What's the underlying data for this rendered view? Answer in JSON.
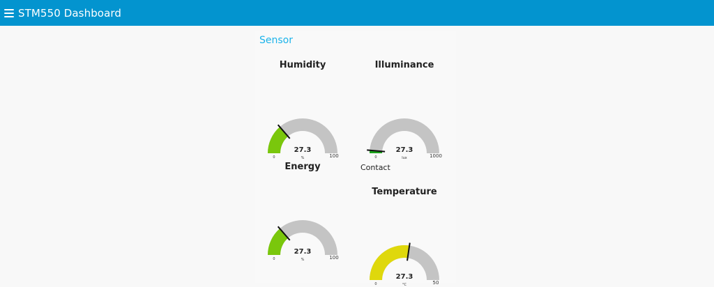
{
  "header": {
    "title": "STM550 Dashboard",
    "menu_icon": "hamburger-menu-icon"
  },
  "group": {
    "title": "Sensor"
  },
  "gauges": [
    {
      "key": "humidity",
      "label": "Humidity",
      "value": 27.3,
      "display": "27.3",
      "min": 0,
      "max": 100,
      "min_label": "0",
      "max_label": "100",
      "unit": "%",
      "color": "#7ac70c"
    },
    {
      "key": "illuminance",
      "label": "Illuminance",
      "value": 27.3,
      "display": "27.3",
      "min": 0,
      "max": 1000,
      "min_label": "0",
      "max_label": "1000",
      "unit": "lux",
      "color": "#1ca11c"
    },
    {
      "key": "energy",
      "label": "Energy",
      "value": 27.3,
      "display": "27.3",
      "min": 0,
      "max": 100,
      "min_label": "0",
      "max_label": "100",
      "unit": "%",
      "color": "#7ac70c"
    },
    {
      "key": "temperature",
      "label": "Temperature",
      "value": 27.3,
      "display": "27.3",
      "min": 0,
      "max": 50,
      "min_label": "0",
      "max_label": "50",
      "unit": "°C",
      "color": "#dfd80c"
    }
  ],
  "contact": {
    "label": "Contact"
  },
  "colors": {
    "header": "#0394cf",
    "group_title": "#1bb3ea",
    "track": "#c4c4c4",
    "needle": "#111111"
  }
}
